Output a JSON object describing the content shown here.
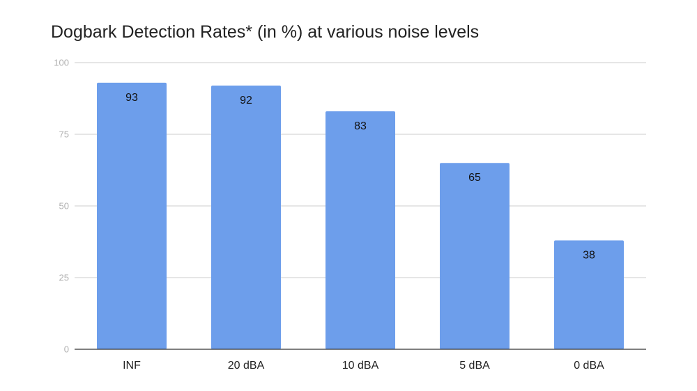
{
  "chart_data": {
    "type": "bar",
    "title": "Dogbark Detection Rates* (in %) at various noise levels",
    "xlabel": "",
    "ylabel": "",
    "categories": [
      "INF",
      "20 dBA",
      "10 dBA",
      "5 dBA",
      "0 dBA"
    ],
    "values": [
      93,
      92,
      83,
      65,
      38
    ],
    "data_labels": [
      "93",
      "92",
      "83",
      "65",
      "38"
    ],
    "ylim": [
      0,
      100
    ],
    "yticks": [
      0,
      25,
      50,
      75,
      100
    ],
    "ytick_labels": [
      "0",
      "25",
      "50",
      "75",
      "100"
    ],
    "grid": true,
    "legend": "none",
    "colors": {
      "bar": "#6d9eeb",
      "grid": "#cccccc",
      "axis": "#333333",
      "ytick_text": "#b0b0b0",
      "text": "#222222"
    }
  }
}
